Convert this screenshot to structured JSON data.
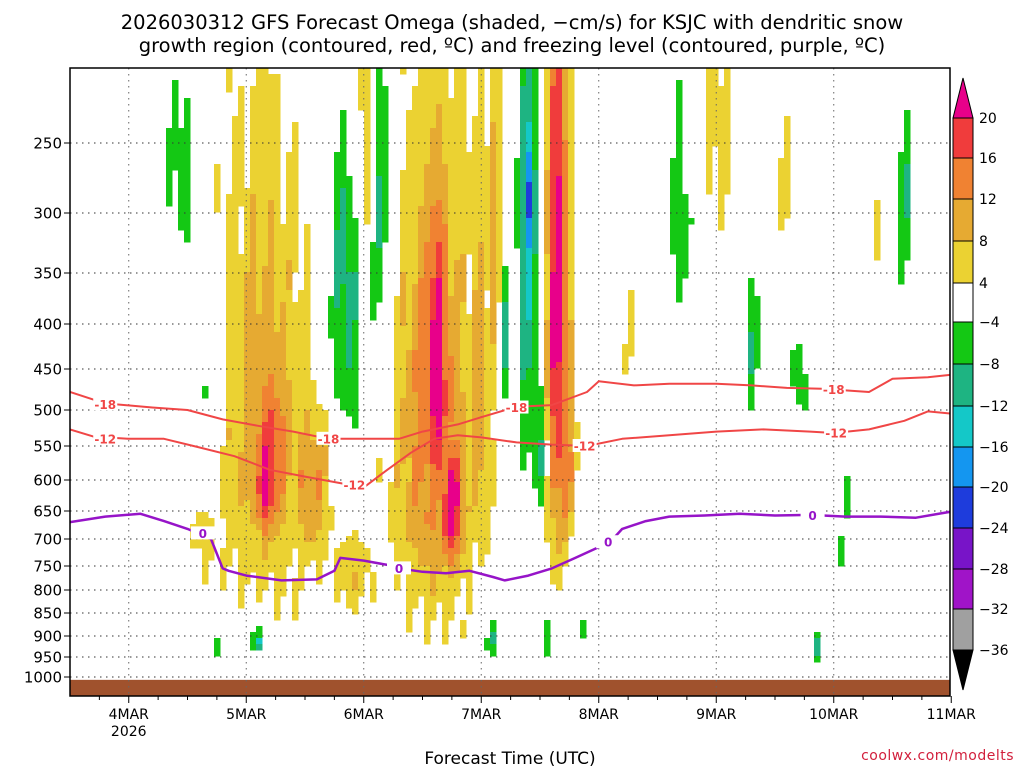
{
  "chart_data": {
    "type": "heatmap",
    "title_line1": "2026030312 GFS Forecast Omega (shaded, −cm/s) for KSJC with dendritic snow",
    "title_line2": "growth region (contoured, red, ºC) and freezing level (contoured, purple, ºC)",
    "xlabel": "Forecast Time (UTC)",
    "ylabel": "",
    "credit": "coolwx.com/modelts",
    "x_ticks": [
      {
        "label": "4MAR",
        "sub": "2026",
        "day": 4
      },
      {
        "label": "5MAR",
        "sub": "",
        "day": 5
      },
      {
        "label": "6MAR",
        "sub": "",
        "day": 6
      },
      {
        "label": "7MAR",
        "sub": "",
        "day": 7
      },
      {
        "label": "8MAR",
        "sub": "",
        "day": 8
      },
      {
        "label": "9MAR",
        "sub": "",
        "day": 9
      },
      {
        "label": "10MAR",
        "sub": "",
        "day": 10
      },
      {
        "label": "11MAR",
        "sub": "",
        "day": 11
      }
    ],
    "xlim_days": [
      3.5,
      11.0
    ],
    "y_ticks": [
      250,
      300,
      350,
      400,
      450,
      500,
      550,
      600,
      650,
      700,
      750,
      800,
      850,
      900,
      950,
      1000
    ],
    "ylim_hpa": [
      200,
      1020
    ],
    "colorbar": {
      "labels": [
        "20",
        "16",
        "12",
        "8",
        "4",
        "−4",
        "−8",
        "−12",
        "−16",
        "−20",
        "−24",
        "−28",
        "−32",
        "−36"
      ],
      "colors": [
        "#e8008a",
        "#f03c3c",
        "#f08232",
        "#e6aa32",
        "#ebd232",
        "#ffffff",
        "#14c814",
        "#1eb482",
        "#14c8c8",
        "#1496f0",
        "#1e3cdc",
        "#7814c8",
        "#a014c8",
        "#a0a0a0",
        "#000000"
      ]
    },
    "contour_labels": {
      "dgz_upper": "-18",
      "dgz_lower": "-12",
      "freezing": "0"
    },
    "contour_colors": {
      "dgz": "#f04646",
      "freezing": "#9614c8",
      "ground": "#a0522d"
    },
    "dgz_upper_line": {
      "day": [
        3.5,
        3.8,
        4.2,
        4.5,
        4.8,
        5.1,
        5.4,
        5.7,
        6.0,
        6.3,
        6.5,
        6.8,
        7.0,
        7.3,
        7.6,
        7.9,
        8.0,
        8.3,
        8.6,
        9.0,
        9.3,
        9.6,
        9.9,
        10.3,
        10.5,
        10.8,
        11.0
      ],
      "hpa": [
        478,
        492,
        497,
        500,
        513,
        522,
        530,
        540,
        540,
        540,
        530,
        520,
        510,
        496,
        494,
        478,
        465,
        470,
        468,
        468,
        470,
        473,
        474,
        478,
        462,
        460,
        457
      ]
    },
    "dgz_lower_line": {
      "day": [
        3.5,
        3.7,
        4.0,
        4.3,
        4.6,
        4.9,
        5.2,
        5.5,
        5.8,
        6.0,
        6.2,
        6.4,
        6.6,
        6.8,
        7.0,
        7.3,
        7.6,
        7.9,
        8.2,
        8.6,
        9.0,
        9.4,
        9.8,
        10.0,
        10.3,
        10.6,
        10.8,
        11.0
      ],
      "hpa": [
        527,
        537,
        540,
        540,
        552,
        565,
        585,
        595,
        605,
        612,
        585,
        560,
        540,
        535,
        538,
        545,
        548,
        550,
        540,
        535,
        530,
        527,
        530,
        532,
        527,
        515,
        502,
        505
      ]
    },
    "freezing_line": {
      "day": [
        3.5,
        3.8,
        4.1,
        4.3,
        4.5,
        4.7,
        4.8,
        4.85,
        5.0,
        5.3,
        5.6,
        5.75,
        5.8,
        6.0,
        6.2,
        6.3,
        6.5,
        6.7,
        6.9,
        7.1,
        7.2,
        7.4,
        7.6,
        7.8,
        8.0,
        8.1,
        8.2,
        8.4,
        8.6,
        8.9,
        9.2,
        9.5,
        9.8,
        10.1,
        10.4,
        10.7,
        11.0
      ],
      "hpa": [
        670,
        660,
        655,
        668,
        682,
        700,
        755,
        760,
        770,
        780,
        778,
        760,
        735,
        740,
        748,
        755,
        762,
        765,
        760,
        773,
        780,
        770,
        755,
        735,
        715,
        705,
        682,
        668,
        660,
        658,
        655,
        658,
        657,
        660,
        660,
        662,
        651
      ]
    },
    "omega_blobs": [
      {
        "day": 5.15,
        "hpa": 520,
        "rd": 0.4,
        "rp": 330,
        "v": 10
      },
      {
        "day": 5.2,
        "hpa": 560,
        "rd": 0.22,
        "rp": 170,
        "v": 16
      },
      {
        "day": 5.17,
        "hpa": 600,
        "rd": 0.1,
        "rp": 110,
        "v": 22
      },
      {
        "day": 5.55,
        "hpa": 610,
        "rd": 0.18,
        "rp": 140,
        "v": 12
      },
      {
        "day": 4.65,
        "hpa": 700,
        "rd": 0.15,
        "rp": 80,
        "v": 6
      },
      {
        "day": 5.9,
        "hpa": 760,
        "rd": 0.22,
        "rp": 90,
        "v": 7
      },
      {
        "day": 6.6,
        "hpa": 520,
        "rd": 0.35,
        "rp": 320,
        "v": 14
      },
      {
        "day": 6.62,
        "hpa": 450,
        "rd": 0.13,
        "rp": 210,
        "v": 22
      },
      {
        "day": 6.75,
        "hpa": 640,
        "rd": 0.12,
        "rp": 130,
        "v": 22
      },
      {
        "day": 6.98,
        "hpa": 500,
        "rd": 0.12,
        "rp": 260,
        "v": 10
      },
      {
        "day": 7.1,
        "hpa": 320,
        "rd": 0.06,
        "rp": 120,
        "v": 12
      },
      {
        "day": 7.65,
        "hpa": 380,
        "rd": 0.1,
        "rp": 320,
        "v": 22
      },
      {
        "day": 7.72,
        "hpa": 560,
        "rd": 0.09,
        "rp": 160,
        "v": 14
      },
      {
        "day": 6.65,
        "hpa": 800,
        "rd": 0.25,
        "rp": 70,
        "v": 6
      },
      {
        "day": 8.25,
        "hpa": 450,
        "rd": 0.06,
        "rp": 140,
        "v": 5
      },
      {
        "day": 4.85,
        "hpa": 250,
        "rd": 0.07,
        "rp": 120,
        "v": 5
      },
      {
        "day": 6.0,
        "hpa": 240,
        "rd": 0.12,
        "rp": 120,
        "v": 6
      },
      {
        "day": 9.0,
        "hpa": 230,
        "rd": 0.15,
        "rp": 100,
        "v": 6
      },
      {
        "day": 9.6,
        "hpa": 300,
        "rd": 0.06,
        "rp": 80,
        "v": 5
      },
      {
        "day": 10.4,
        "hpa": 330,
        "rd": 0.05,
        "rp": 50,
        "v": 5
      },
      {
        "day": 6.9,
        "hpa": 350,
        "rd": 0.16,
        "rp": 200,
        "v": 5
      },
      {
        "day": 3.85,
        "hpa": 360,
        "rd": 0.03,
        "rp": 70,
        "v": 5
      },
      {
        "day": 4.45,
        "hpa": 260,
        "rd": 0.12,
        "rp": 80,
        "v": -6
      },
      {
        "day": 4.7,
        "hpa": 480,
        "rd": 0.08,
        "rp": 100,
        "v": -7
      },
      {
        "day": 5.85,
        "hpa": 370,
        "rd": 0.14,
        "rp": 160,
        "v": -10
      },
      {
        "day": 6.15,
        "hpa": 300,
        "rd": 0.1,
        "rp": 150,
        "v": -9
      },
      {
        "day": 7.4,
        "hpa": 330,
        "rd": 0.1,
        "rp": 220,
        "v": -12
      },
      {
        "day": 7.42,
        "hpa": 290,
        "rd": 0.04,
        "rp": 70,
        "v": -22
      },
      {
        "day": 7.5,
        "hpa": 550,
        "rd": 0.06,
        "rp": 100,
        "v": -10
      },
      {
        "day": 7.2,
        "hpa": 420,
        "rd": 0.05,
        "rp": 90,
        "v": -8
      },
      {
        "day": 8.7,
        "hpa": 300,
        "rd": 0.12,
        "rp": 90,
        "v": -6
      },
      {
        "day": 9.3,
        "hpa": 420,
        "rd": 0.08,
        "rp": 80,
        "v": -7
      },
      {
        "day": 9.7,
        "hpa": 460,
        "rd": 0.06,
        "rp": 60,
        "v": -7
      },
      {
        "day": 10.6,
        "hpa": 290,
        "rd": 0.08,
        "rp": 70,
        "v": -7
      },
      {
        "day": 8.25,
        "hpa": 520,
        "rd": 0.04,
        "rp": 80,
        "v": -6
      },
      {
        "day": 5.1,
        "hpa": 900,
        "rd": 0.09,
        "rp": 55,
        "v": -9
      },
      {
        "day": 5.1,
        "hpa": 915,
        "rd": 0.04,
        "rp": 22,
        "v": -18
      },
      {
        "day": 4.75,
        "hpa": 930,
        "rd": 0.05,
        "rp": 30,
        "v": -7
      },
      {
        "day": 6.0,
        "hpa": 930,
        "rd": 0.03,
        "rp": 30,
        "v": -7
      },
      {
        "day": 7.1,
        "hpa": 910,
        "rd": 0.1,
        "rp": 40,
        "v": -7
      },
      {
        "day": 7.55,
        "hpa": 900,
        "rd": 0.06,
        "rp": 50,
        "v": -7
      },
      {
        "day": 7.85,
        "hpa": 880,
        "rd": 0.05,
        "rp": 40,
        "v": -6
      },
      {
        "day": 9.85,
        "hpa": 920,
        "rd": 0.05,
        "rp": 35,
        "v": -9
      },
      {
        "day": 9.88,
        "hpa": 930,
        "rd": 0.02,
        "rp": 15,
        "v": -14
      },
      {
        "day": 10.1,
        "hpa": 600,
        "rd": 0.03,
        "rp": 100,
        "v": -6
      },
      {
        "day": 10.05,
        "hpa": 720,
        "rd": 0.02,
        "rp": 40,
        "v": -6
      }
    ]
  }
}
